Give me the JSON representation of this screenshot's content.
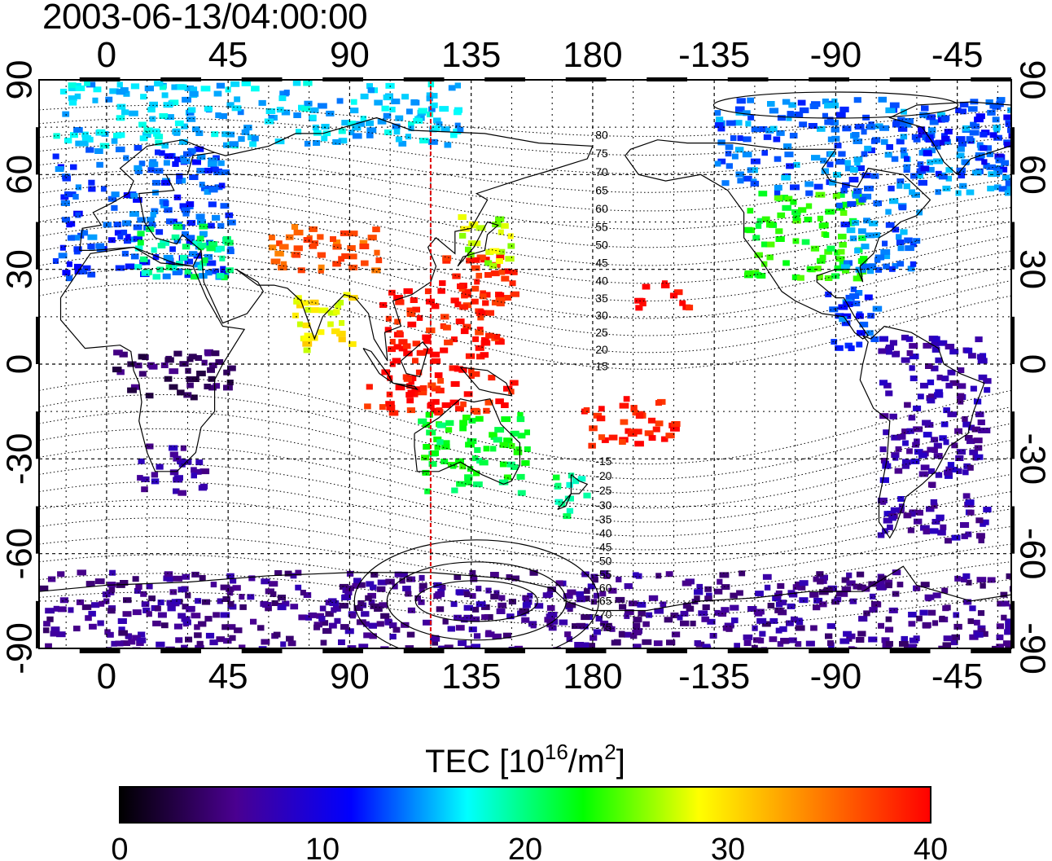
{
  "timestamp": "2003-06-13/04:00:00",
  "map": {
    "projection": "equirectangular",
    "lon_range": [
      -25,
      335
    ],
    "lat_range": [
      -90,
      90
    ],
    "lon_ticks": [
      {
        "lon": 0,
        "label": "0"
      },
      {
        "lon": 45,
        "label": "45"
      },
      {
        "lon": 90,
        "label": "90"
      },
      {
        "lon": 135,
        "label": "135"
      },
      {
        "lon": 180,
        "label": "180"
      },
      {
        "lon": 225,
        "label": "-135"
      },
      {
        "lon": 270,
        "label": "-90"
      },
      {
        "lon": 315,
        "label": "-45"
      }
    ],
    "lat_ticks": [
      {
        "lat": 90,
        "label": "90"
      },
      {
        "lat": 60,
        "label": "60"
      },
      {
        "lat": 30,
        "label": "30"
      },
      {
        "lat": 0,
        "label": "0"
      },
      {
        "lat": -30,
        "label": "-30"
      },
      {
        "lat": -60,
        "label": "-60"
      },
      {
        "lat": -90,
        "label": "-90"
      }
    ],
    "meridian_marker_lon": 120,
    "meridian_marker_color": "#e00000",
    "magnetic_latitude_labels": [
      "80",
      "75",
      "70",
      "65",
      "60",
      "55",
      "50",
      "45",
      "40",
      "35",
      "30",
      "25",
      "20",
      "15",
      "-15",
      "-20",
      "-25",
      "-30",
      "-35",
      "-40",
      "-45",
      "-50",
      "-55",
      "-60",
      "-65",
      "-70",
      "-75"
    ]
  },
  "colorbar": {
    "title_prefix": "TEC  [10",
    "title_exp1": "16",
    "title_mid": "/m",
    "title_exp2": "2",
    "title_suffix": "]",
    "min": 0,
    "max": 40,
    "ticks": [
      "0",
      "10",
      "20",
      "30",
      "40"
    ],
    "colors": [
      "#000000",
      "#4a0090",
      "#0000ff",
      "#00ffff",
      "#00ff00",
      "#ffff00",
      "#ff8000",
      "#ff0000"
    ]
  },
  "tec_regions": [
    {
      "name": "europe",
      "lon": [
        -20,
        45
      ],
      "lat": [
        28,
        70
      ],
      "tec": 13
    },
    {
      "name": "mediterranean",
      "lon": [
        10,
        45
      ],
      "lat": [
        28,
        45
      ],
      "tec": 20
    },
    {
      "name": "central-asia",
      "lon": [
        60,
        100
      ],
      "lat": [
        30,
        45
      ],
      "tec": 36
    },
    {
      "name": "east-asia",
      "lon": [
        120,
        150
      ],
      "lat": [
        20,
        35
      ],
      "tec": 39
    },
    {
      "name": "japan-north",
      "lon": [
        130,
        150
      ],
      "lat": [
        32,
        48
      ],
      "tec": 27
    },
    {
      "name": "india",
      "lon": [
        68,
        90
      ],
      "lat": [
        5,
        25
      ],
      "tec": 29
    },
    {
      "name": "south-china-sea",
      "lon": [
        100,
        145
      ],
      "lat": [
        0,
        25
      ],
      "tec": 39
    },
    {
      "name": "indonesia",
      "lon": [
        95,
        150
      ],
      "lat": [
        -15,
        0
      ],
      "tec": 39
    },
    {
      "name": "pacific-north",
      "lon": [
        195,
        215
      ],
      "lat": [
        18,
        27
      ],
      "tec": 40
    },
    {
      "name": "pacific-south",
      "lon": [
        175,
        210
      ],
      "lat": [
        -25,
        -10
      ],
      "tec": 39
    },
    {
      "name": "australia",
      "lon": [
        115,
        155
      ],
      "lat": [
        -40,
        -15
      ],
      "tec": 22
    },
    {
      "name": "new-zealand",
      "lon": [
        165,
        178
      ],
      "lat": [
        -48,
        -34
      ],
      "tec": 20
    },
    {
      "name": "north-america-west",
      "lon": [
        235,
        280
      ],
      "lat": [
        28,
        55
      ],
      "tec": 23
    },
    {
      "name": "north-america-east",
      "lon": [
        270,
        300
      ],
      "lat": [
        30,
        55
      ],
      "tec": 14
    },
    {
      "name": "canada-arctic",
      "lon": [
        225,
        340
      ],
      "lat": [
        55,
        85
      ],
      "tec": 14
    },
    {
      "name": "greenland",
      "lon": [
        300,
        340
      ],
      "lat": [
        60,
        80
      ],
      "tec": 12
    },
    {
      "name": "central-america",
      "lon": [
        265,
        285
      ],
      "lat": [
        5,
        25
      ],
      "tec": 13
    },
    {
      "name": "south-america",
      "lon": [
        285,
        325
      ],
      "lat": [
        -55,
        10
      ],
      "tec": 7
    },
    {
      "name": "africa-equator",
      "lon": [
        0,
        45
      ],
      "lat": [
        -10,
        5
      ],
      "tec": 4
    },
    {
      "name": "south-africa",
      "lon": [
        10,
        35
      ],
      "lat": [
        -40,
        -25
      ],
      "tec": 7
    },
    {
      "name": "antarctic",
      "lon": [
        -25,
        335
      ],
      "lat": [
        -90,
        -65
      ],
      "tec": 6
    },
    {
      "name": "arctic",
      "lon": [
        -20,
        130
      ],
      "lat": [
        70,
        90
      ],
      "tec": 16
    }
  ]
}
